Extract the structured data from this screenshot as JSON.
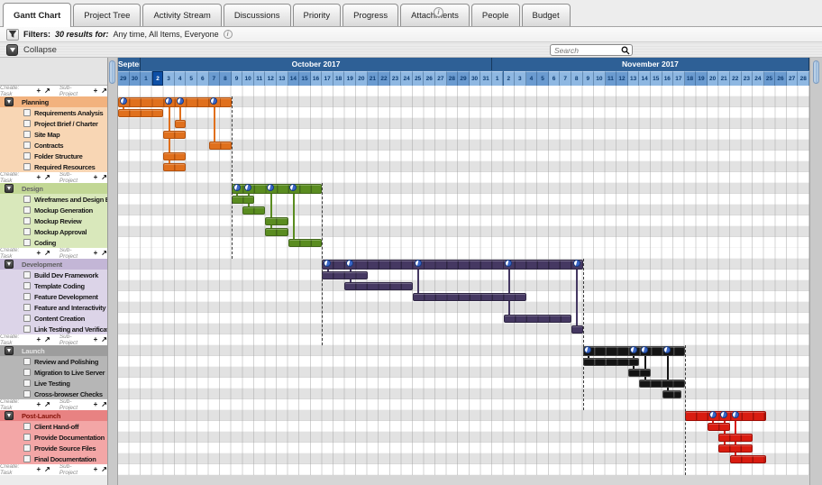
{
  "tabs": {
    "items": [
      {
        "label": "Gantt Chart",
        "active": true
      },
      {
        "label": "Project Tree",
        "active": false
      },
      {
        "label": "Activity Stream",
        "active": false
      },
      {
        "label": "Discussions",
        "active": false
      },
      {
        "label": "Priority",
        "active": false
      },
      {
        "label": "Progress",
        "active": false
      },
      {
        "label": "Attachments",
        "active": false
      },
      {
        "label": "People",
        "active": false
      },
      {
        "label": "Budget",
        "active": false
      }
    ],
    "info_icon": "i"
  },
  "filter_bar": {
    "icon": "funnel-icon",
    "label": "Filters:",
    "results_label": "30 results for:",
    "criteria": "Any time, All Items, Everyone",
    "info_icon": "i"
  },
  "toolbar": {
    "collapse_label": "Collapse",
    "search_placeholder": "Search"
  },
  "create_row": {
    "prefix": "Create:",
    "task_label": "Task",
    "subproject_label": "Sub-Project",
    "plus_icon": "+",
    "goto_icon": "↗"
  },
  "timeline": {
    "months": [
      {
        "label": "Septem",
        "days": [
          29,
          30
        ]
      },
      {
        "label": "October 2017",
        "days": [
          1,
          2,
          3,
          4,
          5,
          6,
          7,
          8,
          9,
          10,
          11,
          12,
          13,
          14,
          15,
          16,
          17,
          18,
          19,
          20,
          21,
          22,
          23,
          24,
          25,
          26,
          27,
          28,
          29,
          30,
          31
        ]
      },
      {
        "label": "November 2017",
        "days": [
          1,
          2,
          3,
          4,
          5,
          6,
          7,
          8,
          9,
          10,
          11,
          12,
          13,
          14,
          15,
          16,
          17,
          18,
          19,
          20,
          21,
          22,
          23,
          24,
          25,
          26,
          27,
          28
        ]
      }
    ],
    "today_day_index": 3
  },
  "groups": [
    {
      "name": "Planning",
      "colors": {
        "header": "#f2b27e",
        "task": "#f8d6b4",
        "bar": "#e0701d",
        "seg": "#b4520e",
        "label": "#1a1a1a"
      },
      "bar": [
        0,
        10
      ],
      "connectors": [
        {
          "day": 0.5,
          "task": 0
        },
        {
          "day": 4.5,
          "task": 5
        },
        {
          "day": 5.5,
          "task": 1
        },
        {
          "day": 8.5,
          "task": 3
        }
      ],
      "dashed_end": true,
      "tasks": [
        {
          "label": "Requirements Analysis",
          "bar": [
            0,
            4
          ]
        },
        {
          "label": "Project Brief / Charter",
          "bar": [
            5,
            6
          ]
        },
        {
          "label": "Site Map",
          "bar": [
            4,
            6
          ]
        },
        {
          "label": "Contracts",
          "bar": [
            8,
            10
          ]
        },
        {
          "label": "Folder Structure",
          "bar": [
            4,
            6
          ]
        },
        {
          "label": "Required Resources",
          "bar": [
            4,
            6
          ]
        }
      ]
    },
    {
      "name": "Design",
      "colors": {
        "header": "#c2d795",
        "task": "#d9e8bb",
        "bar": "#5a8c20",
        "seg": "#42671a",
        "label": "#666666"
      },
      "bar": [
        10,
        18
      ],
      "connectors": [
        {
          "day": 10.5,
          "task": 0
        },
        {
          "day": 11.5,
          "task": 1
        },
        {
          "day": 13.5,
          "task": 3
        },
        {
          "day": 15.5,
          "task": 4
        }
      ],
      "dashed_end": true,
      "tasks": [
        {
          "label": "Wireframes and Design Elem",
          "bar": [
            10,
            12
          ]
        },
        {
          "label": "Mockup Generation",
          "bar": [
            11,
            13
          ]
        },
        {
          "label": "Mockup Review",
          "bar": [
            13,
            15
          ]
        },
        {
          "label": "Mockup Approval",
          "bar": [
            13,
            15
          ]
        },
        {
          "label": "Coding",
          "bar": [
            15,
            18
          ]
        }
      ]
    },
    {
      "name": "Development",
      "colors": {
        "header": "#c3b6d6",
        "task": "#dcd4e8",
        "bar": "#453862",
        "seg": "#2f2644",
        "label": "#5f5f5f"
      },
      "bar": [
        18,
        41
      ],
      "connectors": [
        {
          "day": 18.5,
          "task": 0
        },
        {
          "day": 20.5,
          "task": 1
        },
        {
          "day": 26.5,
          "task": 2
        },
        {
          "day": 34.5,
          "task": 4
        },
        {
          "day": 40.5,
          "task": 5
        }
      ],
      "dashed_end": true,
      "tasks": [
        {
          "label": "Build Dev Framework",
          "bar": [
            18,
            22
          ]
        },
        {
          "label": "Template Coding",
          "bar": [
            20,
            26
          ]
        },
        {
          "label": "Feature Development",
          "bar": [
            26,
            36
          ]
        },
        {
          "label": "Feature and Interactivity Testi",
          "bar": null
        },
        {
          "label": "Content Creation",
          "bar": [
            34,
            40
          ]
        },
        {
          "label": "Link Testing and Verification",
          "bar": [
            40,
            41
          ]
        }
      ]
    },
    {
      "name": "Launch",
      "colors": {
        "header": "#9d9d9d",
        "task": "#b6b6b6",
        "bar": "#141414",
        "seg": "#454545",
        "label": "#e3e3e3"
      },
      "bar": [
        41,
        50
      ],
      "connectors": [
        {
          "day": 41.5,
          "task": 0
        },
        {
          "day": 45.5,
          "task": 1
        },
        {
          "day": 46.5,
          "task": 2
        },
        {
          "day": 48.5,
          "task": 3
        }
      ],
      "dashed_end": true,
      "tasks": [
        {
          "label": "Review and Polishing",
          "bar": [
            41,
            46
          ]
        },
        {
          "label": "Migration to Live Server",
          "bar": [
            45,
            47
          ]
        },
        {
          "label": "Live Testing",
          "bar": [
            46,
            50
          ]
        },
        {
          "label": "Cross-browser Checks",
          "bar": [
            48,
            49.7
          ]
        }
      ]
    },
    {
      "name": "Post-Launch",
      "colors": {
        "header": "#e88282",
        "task": "#f3a6a6",
        "bar": "#d91c10",
        "seg": "#9e0f07",
        "label": "#861309"
      },
      "bar": [
        50,
        57.2
      ],
      "connectors": [
        {
          "day": 52.5,
          "task": 0
        },
        {
          "day": 53.5,
          "task": 2
        },
        {
          "day": 54.5,
          "task": 3
        }
      ],
      "dashed_end": false,
      "tasks": [
        {
          "label": "Client Hand-off",
          "bar": [
            52,
            54
          ]
        },
        {
          "label": "Provide Documentation",
          "bar": [
            53,
            56
          ]
        },
        {
          "label": "Provide Source Files",
          "bar": [
            53,
            56
          ]
        },
        {
          "label": "Final Documentation",
          "bar": [
            54,
            57.2
          ]
        }
      ]
    }
  ]
}
